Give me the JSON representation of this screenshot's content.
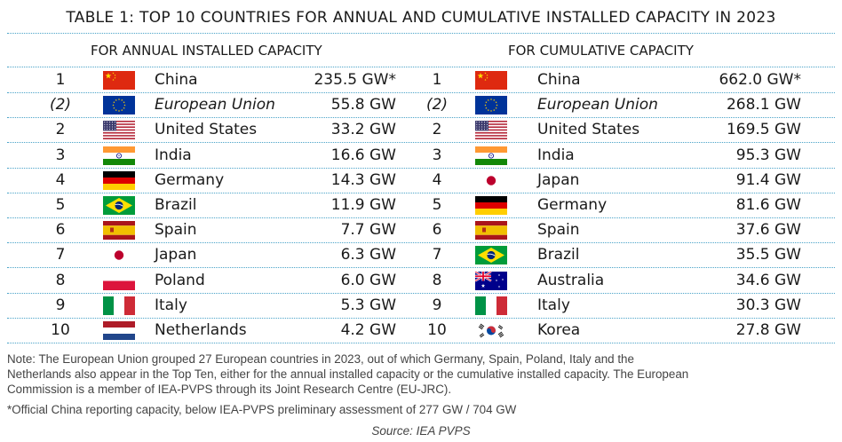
{
  "title": "TABLE 1: TOP 10 COUNTRIES FOR ANNUAL AND CUMULATIVE INSTALLED CAPACITY IN 2023",
  "annual": {
    "header": "FOR ANNUAL INSTALLED CAPACITY",
    "rows": [
      {
        "rank": "1",
        "flag": "china-flag",
        "country": "China",
        "value": "235.5 GW*"
      },
      {
        "rank": "(2)",
        "flag": "eu-flag",
        "country": "European Union",
        "value": "55.8 GW",
        "italic": true
      },
      {
        "rank": "2",
        "flag": "usa-flag",
        "country": "United States",
        "value": "33.2 GW"
      },
      {
        "rank": "3",
        "flag": "india-flag",
        "country": "India",
        "value": "16.6 GW"
      },
      {
        "rank": "4",
        "flag": "germany-flag",
        "country": "Germany",
        "value": "14.3 GW"
      },
      {
        "rank": "5",
        "flag": "brazil-flag",
        "country": "Brazil",
        "value": "11.9 GW"
      },
      {
        "rank": "6",
        "flag": "spain-flag",
        "country": "Spain",
        "value": "7.7 GW"
      },
      {
        "rank": "7",
        "flag": "japan-flag",
        "country": "Japan",
        "value": "6.3 GW"
      },
      {
        "rank": "8",
        "flag": "poland-flag",
        "country": "Poland",
        "value": "6.0 GW"
      },
      {
        "rank": "9",
        "flag": "italy-flag",
        "country": "Italy",
        "value": "5.3 GW"
      },
      {
        "rank": "10",
        "flag": "netherlands-flag",
        "country": "Netherlands",
        "value": "4.2 GW"
      }
    ]
  },
  "cumulative": {
    "header": "FOR CUMULATIVE CAPACITY",
    "rows": [
      {
        "rank": "1",
        "flag": "china-flag",
        "country": "China",
        "value": "662.0 GW*"
      },
      {
        "rank": "(2)",
        "flag": "eu-flag",
        "country": "European Union",
        "value": "268.1 GW",
        "italic": true
      },
      {
        "rank": "2",
        "flag": "usa-flag",
        "country": "United States",
        "value": "169.5 GW"
      },
      {
        "rank": "3",
        "flag": "india-flag",
        "country": "India",
        "value": "95.3 GW"
      },
      {
        "rank": "4",
        "flag": "japan-flag",
        "country": "Japan",
        "value": "91.4 GW"
      },
      {
        "rank": "5",
        "flag": "germany-flag",
        "country": "Germany",
        "value": "81.6 GW"
      },
      {
        "rank": "6",
        "flag": "spain-flag",
        "country": "Spain",
        "value": "37.6 GW"
      },
      {
        "rank": "7",
        "flag": "brazil-flag",
        "country": "Brazil",
        "value": "35.5 GW"
      },
      {
        "rank": "8",
        "flag": "australia-flag",
        "country": "Australia",
        "value": "34.6 GW"
      },
      {
        "rank": "9",
        "flag": "italy-flag",
        "country": "Italy",
        "value": "30.3 GW"
      },
      {
        "rank": "10",
        "flag": "korea-flag",
        "country": "Korea",
        "value": "27.8 GW"
      }
    ]
  },
  "note_lines": [
    "Note: The European Union grouped 27 European countries in 2023, out of which Germany, Spain, Poland, Italy and the",
    "Netherlands also appear in the Top Ten, either for the annual installed capacity or the cumulative installed capacity. The European",
    "Commission is a member of IEA-PVPS through its Joint Research Centre (EU-JRC).",
    "*Official China reporting capacity, below IEA-PVPS preliminary assessment of 277 GW / 704 GW"
  ],
  "source": "Source: IEA PVPS"
}
